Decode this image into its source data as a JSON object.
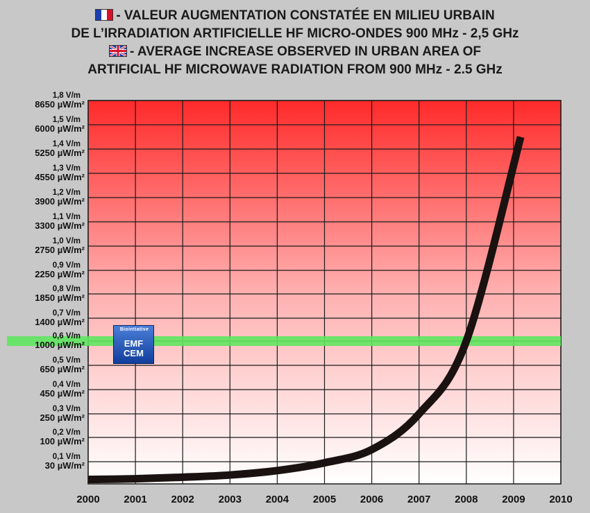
{
  "header": {
    "fr_line1": "- VALEUR AUGMENTATION CONSTATÉE EN MILIEU URBAIN",
    "fr_line2": "DE L’IRRADIATION ARTIFICIELLE HF MICRO-ONDES 900 MHz - 2,5 GHz",
    "en_line1": "- AVERAGE INCREASE OBSERVED IN URBAN AREA OF",
    "en_line2": "ARTIFICIAL HF MICROWAVE RADIATION FROM 900 MHz - 2.5 GHz",
    "flag_fr": "flag-france-icon",
    "flag_uk": "flag-uk-icon"
  },
  "badge": {
    "arc_text": "Biointiative",
    "line1": "EMF",
    "line2": "CEM"
  },
  "chart_data": {
    "type": "line",
    "x": [
      2000,
      2001,
      2002,
      2003,
      2004,
      2005,
      2006,
      2007,
      2008,
      2009.15
    ],
    "series": [
      {
        "values": [
          0.02,
          0.023,
          0.03,
          0.04,
          0.06,
          0.095,
          0.15,
          0.3,
          0.6,
          1.45
        ]
      }
    ],
    "xlim": [
      2000,
      2010
    ],
    "xticks": [
      "2000",
      "2001",
      "2002",
      "2003",
      "2004",
      "2005",
      "2006",
      "2007",
      "2008",
      "2009",
      "2010"
    ],
    "yticks": [
      {
        "v": 0.1,
        "vm": "0,1 V/m",
        "pw": "30 µW/m²"
      },
      {
        "v": 0.2,
        "vm": "0,2 V/m",
        "pw": "100 µW/m²"
      },
      {
        "v": 0.3,
        "vm": "0,3 V/m",
        "pw": "250 µW/m²"
      },
      {
        "v": 0.4,
        "vm": "0,4 V/m",
        "pw": "450 µW/m²"
      },
      {
        "v": 0.5,
        "vm": "0,5 V/m",
        "pw": "650 µW/m²"
      },
      {
        "v": 0.6,
        "vm": "0,6 V/m",
        "pw": "1000 µW/m²"
      },
      {
        "v": 0.7,
        "vm": "0,7 V/m",
        "pw": "1400 µW/m²"
      },
      {
        "v": 0.8,
        "vm": "0,8 V/m",
        "pw": "1850 µW/m²"
      },
      {
        "v": 0.9,
        "vm": "0,9 V/m",
        "pw": "2250 µW/m²"
      },
      {
        "v": 1.0,
        "vm": "1,0 V/m",
        "pw": "2750 µW/m²"
      },
      {
        "v": 1.1,
        "vm": "1,1 V/m",
        "pw": "3300 µW/m²"
      },
      {
        "v": 1.2,
        "vm": "1,2 V/m",
        "pw": "3900 µW/m²"
      },
      {
        "v": 1.3,
        "vm": "1,3 V/m",
        "pw": "4550 µW/m²"
      },
      {
        "v": 1.4,
        "vm": "1,4 V/m",
        "pw": "5250 µW/m²"
      },
      {
        "v": 1.5,
        "vm": "1,5 V/m",
        "pw": "6000 µW/m²"
      },
      {
        "v": 1.8,
        "vm": "1,8 V/m",
        "pw": "8650 µW/m²"
      }
    ],
    "reference_band": {
      "value": 0.6,
      "color": "#5fe65f"
    },
    "line_color": "#1a1210",
    "background_gradient": [
      "#ff2a2a",
      "#ffffff"
    ],
    "grid": true
  }
}
